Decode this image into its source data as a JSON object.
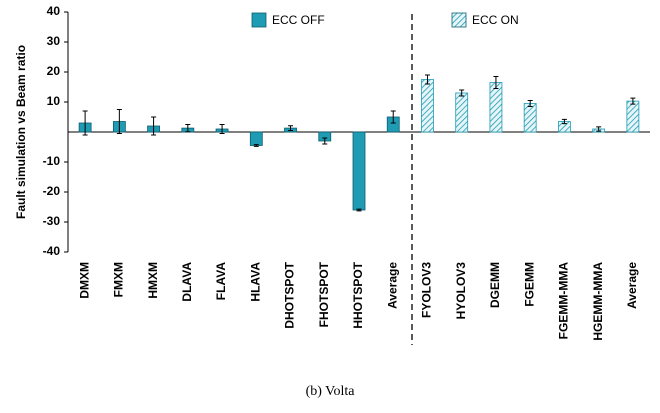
{
  "chart_data": {
    "type": "bar",
    "ylabel": "Fault simulation vs Beam ratio",
    "categories": [
      "DMXM",
      "FMXM",
      "HMXM",
      "DLAVA",
      "FLAVA",
      "HLAVA",
      "DHOTSPOT",
      "FHOTSPOT",
      "HHOTSPOT",
      "Average",
      "FYOLOV3",
      "HYOLOV3",
      "DGEMM",
      "FGEMM",
      "FGEMM-MMA",
      "HGEMM-MMA",
      "Average"
    ],
    "series": [
      {
        "name": "ECC OFF",
        "color": "#1f9bb4",
        "pattern": "solid",
        "values": [
          3,
          3.5,
          2,
          1.3,
          1,
          -4.5,
          1.3,
          -3,
          -26,
          5,
          null,
          null,
          null,
          null,
          null,
          null,
          null
        ],
        "errors": [
          4,
          4,
          3,
          1.2,
          1.5,
          0.3,
          0.8,
          1,
          0.3,
          2,
          null,
          null,
          null,
          null,
          null,
          null,
          null
        ]
      },
      {
        "name": "ECC ON",
        "color": "#1f9bb4",
        "pattern": "hatch",
        "values": [
          null,
          null,
          null,
          null,
          null,
          null,
          null,
          null,
          null,
          null,
          17.5,
          13,
          16.5,
          9.5,
          3.5,
          1,
          10.3
        ],
        "errors": [
          null,
          null,
          null,
          null,
          null,
          null,
          null,
          null,
          null,
          null,
          1.5,
          1,
          2,
          1,
          0.7,
          0.7,
          1
        ]
      }
    ],
    "ylim": [
      -40,
      40
    ],
    "yticks": [
      40,
      30,
      20,
      10,
      -10,
      -20,
      -30,
      -40
    ],
    "grid": false
  },
  "caption": "(b) Volta"
}
